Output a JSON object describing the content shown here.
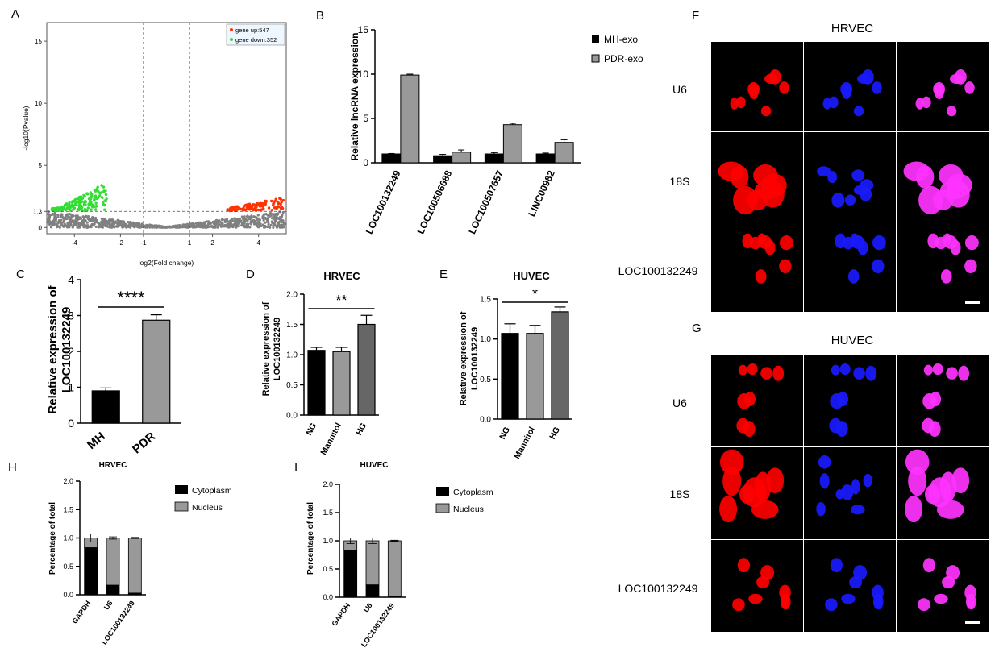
{
  "panel_letters": [
    "A",
    "B",
    "C",
    "D",
    "E",
    "F",
    "G",
    "H",
    "I"
  ],
  "colors": {
    "black": "#000000",
    "gray": "#999999",
    "up": "#ff3300",
    "down": "#33dd33",
    "neutral": "#808080",
    "red_stain": "#ff0000",
    "blue_stain": "#1a1aff",
    "merge": "#ff33ff"
  },
  "chart_data": [
    {
      "id": "A",
      "type": "scatter",
      "xlabel": "log2(Fold change)",
      "ylabel": "-log10(Pvalue)",
      "xticks": [
        "-4",
        "-2",
        "-1",
        "1",
        "2",
        "4"
      ],
      "yticks": [
        "0",
        "1.3",
        "5",
        "10",
        "15"
      ],
      "xlim": [
        -5.2,
        5.2
      ],
      "ylim": [
        -0.5,
        16.5
      ],
      "threshold_lines": {
        "x": [
          -1,
          1
        ],
        "y": 1.3
      },
      "legend": [
        "gene up:547",
        "gene down:352"
      ],
      "series": [
        {
          "name": "gene up:547",
          "color": "#ff3300"
        },
        {
          "name": "gene down:352",
          "color": "#33dd33"
        }
      ]
    },
    {
      "id": "B",
      "type": "bar",
      "ylabel": "Relative lncRNA expression",
      "ylim": [
        0,
        15
      ],
      "yticks": [
        "0",
        "5",
        "10",
        "15"
      ],
      "categories": [
        "LOC100132249",
        "LOC100506688",
        "LOC100507657",
        "LINC00982"
      ],
      "series": [
        {
          "name": "MH-exo",
          "color": "#000000",
          "values": [
            1.0,
            0.8,
            1.0,
            1.0
          ],
          "errors": [
            0.05,
            0.15,
            0.15,
            0.1
          ]
        },
        {
          "name": "PDR-exo",
          "color": "#999999",
          "values": [
            9.9,
            1.2,
            4.3,
            2.3
          ],
          "errors": [
            0.1,
            0.25,
            0.15,
            0.3
          ]
        }
      ]
    },
    {
      "id": "C",
      "type": "bar",
      "ylabel": "Relative expression of LOC100132249",
      "ylim": [
        0,
        4
      ],
      "yticks": [
        "0",
        "1",
        "2",
        "3",
        "4"
      ],
      "categories": [
        "MH",
        "PDR"
      ],
      "values": [
        0.9,
        2.87
      ],
      "errors": [
        0.08,
        0.15
      ],
      "colors": [
        "#000000",
        "#999999"
      ],
      "significance": "****"
    },
    {
      "id": "D",
      "type": "bar",
      "title": "HRVEC",
      "ylabel": "Relative expression of LOC100132249",
      "ylim": [
        0,
        2.0
      ],
      "yticks": [
        "0.0",
        "0.5",
        "1.0",
        "1.5",
        "2.0"
      ],
      "categories": [
        "NG",
        "Mannitol",
        "HG"
      ],
      "values": [
        1.07,
        1.05,
        1.5
      ],
      "errors": [
        0.05,
        0.07,
        0.15
      ],
      "colors": [
        "#000000",
        "#999999",
        "#666666"
      ],
      "significance": "**"
    },
    {
      "id": "E",
      "type": "bar",
      "title": "HUVEC",
      "ylabel": "Relative expression of LOC100132249",
      "ylim": [
        0,
        1.5
      ],
      "yticks": [
        "0.0",
        "0.5",
        "1.0",
        "1.5"
      ],
      "categories": [
        "NG",
        "Mannitol",
        "HG"
      ],
      "values": [
        1.07,
        1.07,
        1.34
      ],
      "errors": [
        0.12,
        0.1,
        0.06
      ],
      "colors": [
        "#000000",
        "#999999",
        "#666666"
      ],
      "significance": "*"
    },
    {
      "id": "H",
      "type": "bar",
      "stacked": true,
      "title": "HRVEC",
      "ylabel": "Percentage of total",
      "ylim": [
        0,
        2.0
      ],
      "yticks": [
        "0.0",
        "0.5",
        "1.0",
        "1.5",
        "2.0"
      ],
      "categories": [
        "GAPDH",
        "U6",
        "LOC100132249"
      ],
      "series": [
        {
          "name": "Cytoplasm",
          "color": "#000000",
          "values": [
            0.83,
            0.17,
            0.03
          ],
          "errors": [
            0.08,
            0.02,
            0.01
          ]
        },
        {
          "name": "Nucleus",
          "color": "#999999",
          "values": [
            0.17,
            0.83,
            0.97
          ],
          "errors": [
            0.07,
            0.02,
            0.01
          ]
        }
      ]
    },
    {
      "id": "I",
      "type": "bar",
      "stacked": true,
      "title": "HUVEC",
      "ylabel": "Percentage of total",
      "ylim": [
        0,
        2.0
      ],
      "yticks": [
        "0.0",
        "0.5",
        "1.0",
        "1.5",
        "2.0"
      ],
      "categories": [
        "GAPDH",
        "U6",
        "LOC100132249"
      ],
      "series": [
        {
          "name": "Cytoplasm",
          "color": "#000000",
          "values": [
            0.83,
            0.22,
            0.02
          ],
          "errors": [
            0.06,
            0.05,
            0.01
          ]
        },
        {
          "name": "Nucleus",
          "color": "#999999",
          "values": [
            0.17,
            0.78,
            0.98
          ],
          "errors": [
            0.05,
            0.05,
            0.01
          ]
        }
      ]
    }
  ],
  "microscopy": [
    {
      "id": "F",
      "title": "HRVEC",
      "rows": [
        "U6",
        "18S",
        "LOC100132249"
      ]
    },
    {
      "id": "G",
      "title": "HUVEC",
      "rows": [
        "U6",
        "18S",
        "LOC100132249"
      ]
    }
  ]
}
